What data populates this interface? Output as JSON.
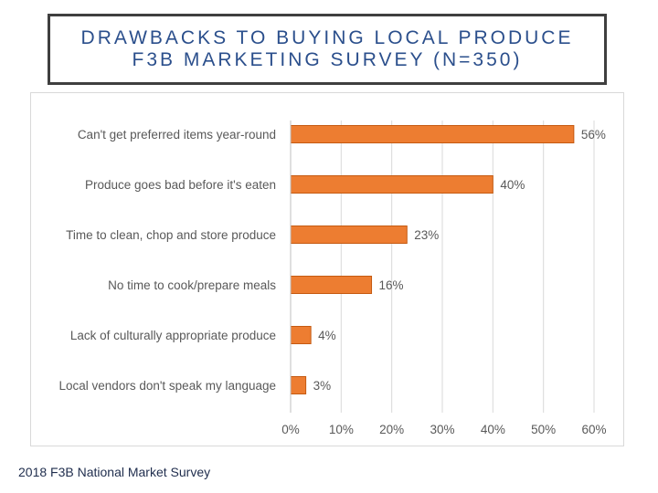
{
  "title": {
    "line1": "DRAWBACKS TO BUYING LOCAL PRODUCE",
    "line2": "F3B MARKETING SURVEY (N=350)"
  },
  "footnote": "2018 F3B National Market Survey",
  "chart_data": {
    "type": "bar",
    "orientation": "horizontal",
    "categories": [
      "Can't get preferred  items year-round",
      "Produce goes bad before it's eaten",
      "Time to clean, chop and store produce",
      "No time to cook/prepare meals",
      "Lack of culturally appropriate produce",
      "Local vendors don't speak my language"
    ],
    "values": [
      56,
      40,
      23,
      16,
      4,
      3
    ],
    "value_labels": [
      "56%",
      "40%",
      "23%",
      "16%",
      "4%",
      "3%"
    ],
    "xlim": [
      0,
      60
    ],
    "x_ticks": [
      0,
      10,
      20,
      30,
      40,
      50,
      60
    ],
    "x_tick_labels": [
      "0%",
      "10%",
      "20%",
      "30%",
      "40%",
      "50%",
      "60%"
    ],
    "grid": true,
    "legend": "none",
    "bar_color": "#ed7d31",
    "bar_edge_color": "#c55a11"
  }
}
